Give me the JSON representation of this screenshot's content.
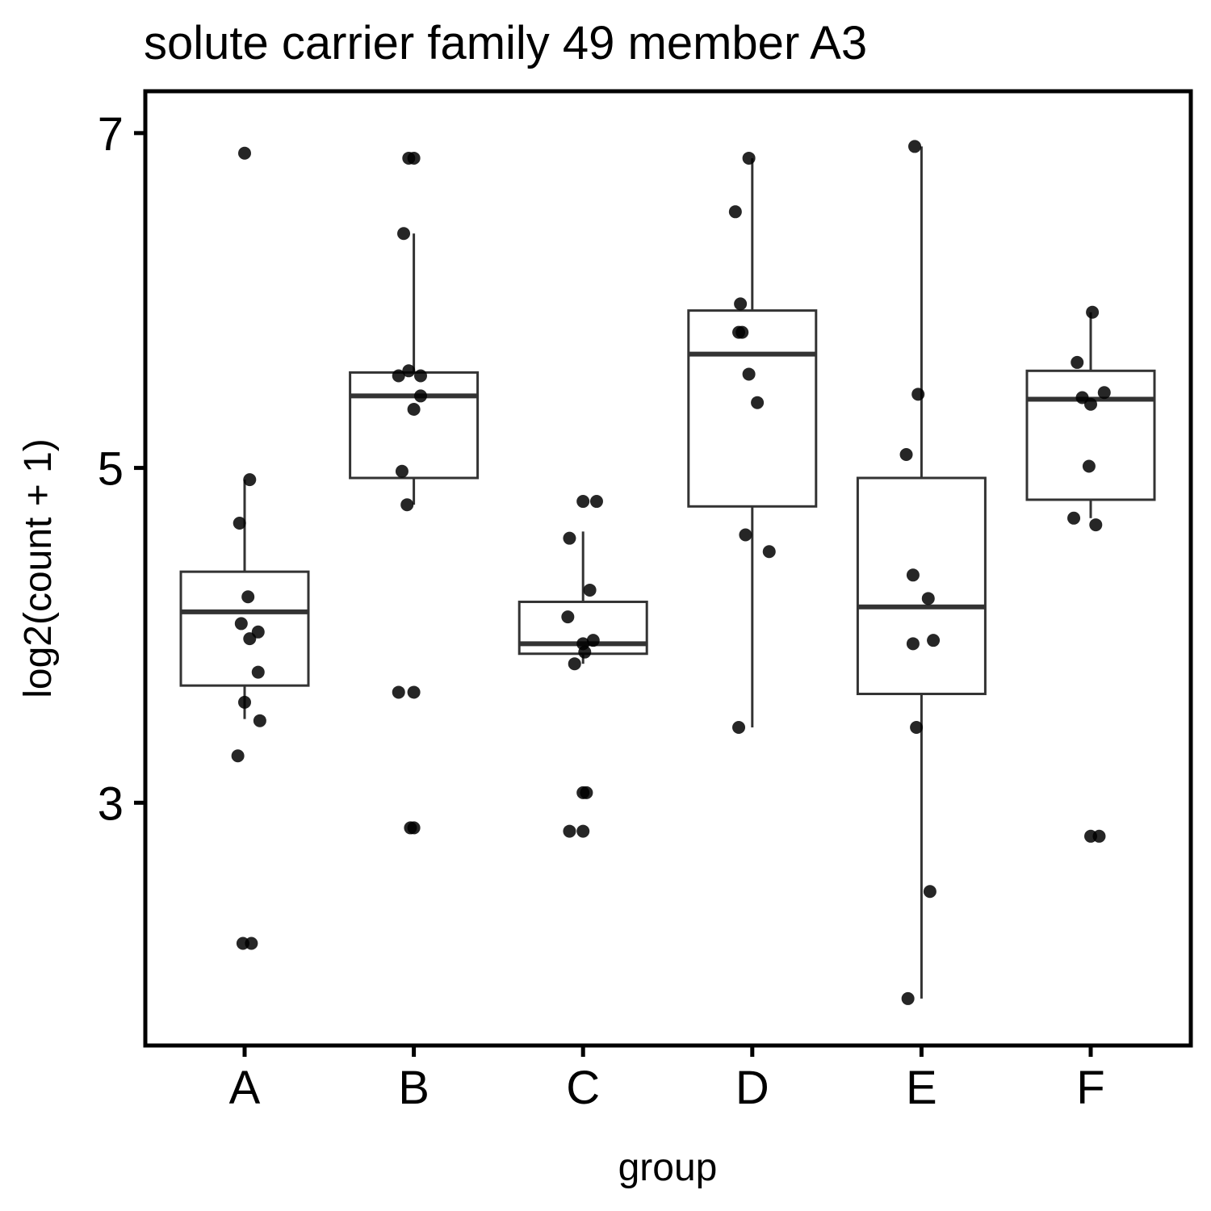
{
  "chart_data": {
    "type": "boxplot",
    "title": "solute carrier family 49 member A3",
    "xlabel": "group",
    "ylabel": "log2(count + 1)",
    "ylim": [
      1.55,
      7.25
    ],
    "yticks": [
      3,
      5,
      7
    ],
    "grid": false,
    "legend": "none",
    "categories": [
      "A",
      "B",
      "C",
      "D",
      "E",
      "F"
    ],
    "boxes": [
      {
        "group": "A",
        "whisker_low": 3.5,
        "q1": 3.7,
        "median": 4.14,
        "q3": 4.38,
        "whisker_high": 4.93
      },
      {
        "group": "B",
        "whisker_low": 4.78,
        "q1": 4.94,
        "median": 5.43,
        "q3": 5.57,
        "whisker_high": 6.4
      },
      {
        "group": "C",
        "whisker_low": 3.83,
        "q1": 3.89,
        "median": 3.95,
        "q3": 4.2,
        "whisker_high": 4.62
      },
      {
        "group": "D",
        "whisker_low": 3.45,
        "q1": 4.77,
        "median": 5.68,
        "q3": 5.94,
        "whisker_high": 6.85
      },
      {
        "group": "E",
        "whisker_low": 1.83,
        "q1": 3.65,
        "median": 4.17,
        "q3": 4.94,
        "whisker_high": 6.92
      },
      {
        "group": "F",
        "whisker_low": 4.7,
        "q1": 4.81,
        "median": 5.41,
        "q3": 5.58,
        "whisker_high": 5.93
      }
    ],
    "points": [
      {
        "group": "A",
        "x": 0.0,
        "y": 6.88
      },
      {
        "group": "A",
        "x": 0.03,
        "y": 4.93
      },
      {
        "group": "A",
        "x": -0.03,
        "y": 4.67
      },
      {
        "group": "A",
        "x": 0.02,
        "y": 4.23
      },
      {
        "group": "A",
        "x": 0.03,
        "y": 3.98
      },
      {
        "group": "A",
        "x": -0.02,
        "y": 4.07
      },
      {
        "group": "A",
        "x": 0.08,
        "y": 4.02
      },
      {
        "group": "A",
        "x": 0.08,
        "y": 3.78
      },
      {
        "group": "A",
        "x": 0.0,
        "y": 3.6
      },
      {
        "group": "A",
        "x": 0.09,
        "y": 3.49
      },
      {
        "group": "A",
        "x": -0.04,
        "y": 3.28
      },
      {
        "group": "A",
        "x": 0.04,
        "y": 2.16
      },
      {
        "group": "A",
        "x": -0.01,
        "y": 2.16
      },
      {
        "group": "B",
        "x": -0.03,
        "y": 6.85
      },
      {
        "group": "B",
        "x": 0.0,
        "y": 6.85
      },
      {
        "group": "B",
        "x": -0.06,
        "y": 6.4
      },
      {
        "group": "B",
        "x": -0.09,
        "y": 5.55
      },
      {
        "group": "B",
        "x": -0.03,
        "y": 5.58
      },
      {
        "group": "B",
        "x": 0.04,
        "y": 5.55
      },
      {
        "group": "B",
        "x": 0.04,
        "y": 5.43
      },
      {
        "group": "B",
        "x": 0.0,
        "y": 5.35
      },
      {
        "group": "B",
        "x": -0.07,
        "y": 4.98
      },
      {
        "group": "B",
        "x": -0.04,
        "y": 4.78
      },
      {
        "group": "B",
        "x": -0.09,
        "y": 3.66
      },
      {
        "group": "B",
        "x": 0.0,
        "y": 3.66
      },
      {
        "group": "B",
        "x": -0.02,
        "y": 2.85
      },
      {
        "group": "B",
        "x": 0.0,
        "y": 2.85
      },
      {
        "group": "C",
        "x": 0.0,
        "y": 4.8
      },
      {
        "group": "C",
        "x": 0.08,
        "y": 4.8
      },
      {
        "group": "C",
        "x": -0.08,
        "y": 4.58
      },
      {
        "group": "C",
        "x": 0.04,
        "y": 4.27
      },
      {
        "group": "C",
        "x": -0.09,
        "y": 4.11
      },
      {
        "group": "C",
        "x": 0.06,
        "y": 3.97
      },
      {
        "group": "C",
        "x": 0.0,
        "y": 3.95
      },
      {
        "group": "C",
        "x": 0.01,
        "y": 3.9
      },
      {
        "group": "C",
        "x": -0.05,
        "y": 3.83
      },
      {
        "group": "C",
        "x": 0.0,
        "y": 3.06
      },
      {
        "group": "C",
        "x": 0.02,
        "y": 3.06
      },
      {
        "group": "C",
        "x": -0.08,
        "y": 2.83
      },
      {
        "group": "C",
        "x": 0.0,
        "y": 2.83
      },
      {
        "group": "D",
        "x": -0.02,
        "y": 6.85
      },
      {
        "group": "D",
        "x": -0.1,
        "y": 6.53
      },
      {
        "group": "D",
        "x": -0.07,
        "y": 5.98
      },
      {
        "group": "D",
        "x": -0.08,
        "y": 5.81
      },
      {
        "group": "D",
        "x": -0.06,
        "y": 5.81
      },
      {
        "group": "D",
        "x": -0.02,
        "y": 5.56
      },
      {
        "group": "D",
        "x": 0.03,
        "y": 5.39
      },
      {
        "group": "D",
        "x": -0.04,
        "y": 4.6
      },
      {
        "group": "D",
        "x": 0.1,
        "y": 4.5
      },
      {
        "group": "D",
        "x": -0.08,
        "y": 3.45
      },
      {
        "group": "E",
        "x": -0.04,
        "y": 6.92
      },
      {
        "group": "E",
        "x": -0.02,
        "y": 5.44
      },
      {
        "group": "E",
        "x": -0.09,
        "y": 5.08
      },
      {
        "group": "E",
        "x": -0.05,
        "y": 4.36
      },
      {
        "group": "E",
        "x": 0.04,
        "y": 4.22
      },
      {
        "group": "E",
        "x": 0.07,
        "y": 3.97
      },
      {
        "group": "E",
        "x": -0.05,
        "y": 3.95
      },
      {
        "group": "E",
        "x": -0.03,
        "y": 3.45
      },
      {
        "group": "E",
        "x": 0.05,
        "y": 2.47
      },
      {
        "group": "E",
        "x": -0.08,
        "y": 1.83
      },
      {
        "group": "F",
        "x": 0.01,
        "y": 5.93
      },
      {
        "group": "F",
        "x": -0.08,
        "y": 5.63
      },
      {
        "group": "F",
        "x": 0.08,
        "y": 5.45
      },
      {
        "group": "F",
        "x": -0.05,
        "y": 5.42
      },
      {
        "group": "F",
        "x": 0.0,
        "y": 5.38
      },
      {
        "group": "F",
        "x": -0.01,
        "y": 5.01
      },
      {
        "group": "F",
        "x": 0.03,
        "y": 4.66
      },
      {
        "group": "F",
        "x": -0.1,
        "y": 4.7
      },
      {
        "group": "F",
        "x": 0.0,
        "y": 2.8
      },
      {
        "group": "F",
        "x": 0.05,
        "y": 2.8
      }
    ]
  }
}
